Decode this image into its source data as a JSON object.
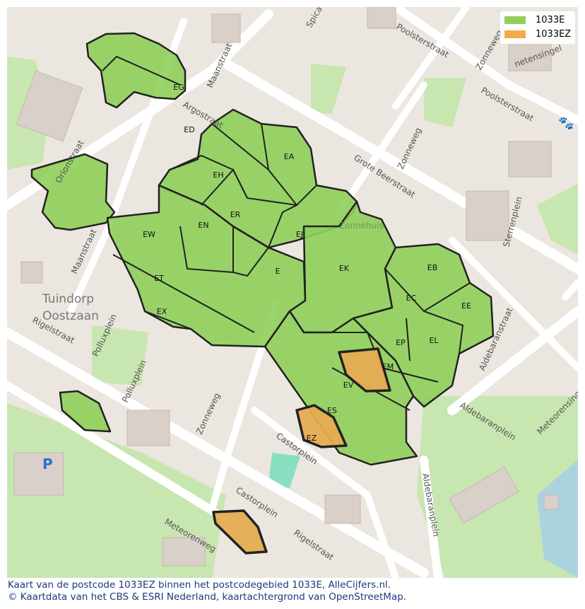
{
  "legend": {
    "items": [
      {
        "label": "1033E",
        "color": "#8fcf5a"
      },
      {
        "label": "1033EZ",
        "color": "#f5a94a"
      }
    ]
  },
  "caption": {
    "line1": "Kaart van de postcode 1033EZ binnen het postcodegebied 1033E, AlleCijfers.nl.",
    "line2": "© Kaartdata van het CBS & ESRI Nederland, kaartachtergrond van OpenStreetMap."
  },
  "areas": [
    "EG",
    "ED",
    "EA",
    "EH",
    "ER",
    "EN",
    "EW",
    "EJ",
    "E",
    "EK",
    "EB",
    "EC",
    "EE",
    "ET",
    "EX",
    "EP",
    "EL",
    "EM",
    "EV",
    "ES",
    "EZ"
  ],
  "streets": {
    "maanstraat": "Maanstraat",
    "argostraat": "Argostraat",
    "spica": "Spica",
    "poolster1": "Poolsterstraat",
    "poolster2": "Poolsterstraat",
    "zonneweg1": "Zonneweg",
    "zonneweg2": "Zonneweg",
    "grotebeer": "Grote Beerstraat",
    "sterrenplein": "Sterrenplein",
    "aldebaranstraat": "Aldebaranstraat",
    "aldebaranplein1": "Aldebaranplein",
    "aldebaranplein2": "Aldebaranplein",
    "meteorensingel": "Meteorensingel",
    "planetensingel": "netensingel",
    "castorplein1": "Castorplein",
    "castorplein2": "Castorplein",
    "rigel1": "Rigelstraat",
    "rigel2": "Rigelstraat",
    "pollux": "Polluxplein",
    "pollux2": "Polluxplein",
    "meteorenweg": "Meteorenweg",
    "orion": "Orionstraat",
    "tuindorp1": "Tuindorp",
    "tuindorp2": "Oostzaan",
    "zonnehuis": "Zonnehuis"
  },
  "colors": {
    "area": "#8fcf5a",
    "highlight": "#f5a94a",
    "background": "#f2efe9"
  }
}
